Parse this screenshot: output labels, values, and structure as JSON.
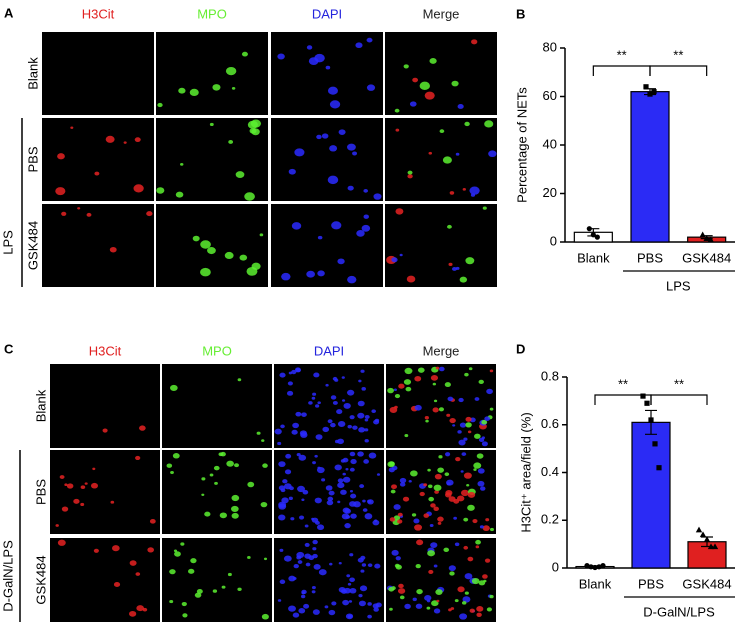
{
  "panels": [
    {
      "letter": "A",
      "columns": [
        "H3Cit",
        "MPO",
        "DAPI",
        "Merge"
      ],
      "rows": [
        "Blank",
        "PBS",
        "GSK484"
      ],
      "group": "LPS"
    },
    {
      "letter": "C",
      "columns": [
        "H3Cit",
        "MPO",
        "DAPI",
        "Merge"
      ],
      "rows": [
        "Blank",
        "PBS",
        "GSK484"
      ],
      "group": "D-GalN/LPS"
    }
  ],
  "chart_letters": [
    "B",
    "D"
  ],
  "chart_data": [
    {
      "type": "bar",
      "ylabel": "Percentage of NETs",
      "categories": [
        "Blank",
        "PBS",
        "GSK484"
      ],
      "group_label": "LPS",
      "values": [
        4,
        62,
        2
      ],
      "errors": [
        1.5,
        1.2,
        0.6
      ],
      "colors": [
        "#ffffff",
        "#2b2bf5",
        "#e02020"
      ],
      "points": [
        [
          5.5,
          3,
          2
        ],
        [
          64,
          61,
          62
        ],
        [
          3,
          1.5,
          1
        ]
      ],
      "significance_labels": [
        "**",
        "**"
      ],
      "ylim": [
        0,
        80
      ],
      "yticks": [
        0,
        20,
        40,
        60,
        80
      ]
    },
    {
      "type": "bar",
      "ylabel": "H3Cit⁺ area/field (%)",
      "categories": [
        "Blank",
        "PBS",
        "GSK484"
      ],
      "group_label": "D-GalN/LPS",
      "values": [
        0.006,
        0.61,
        0.11
      ],
      "errors": [
        0.003,
        0.05,
        0.02
      ],
      "colors": [
        "#ffffff",
        "#2b2bf5",
        "#e02020"
      ],
      "points": [
        [
          0.01,
          0.005,
          0.002,
          0.005,
          0.01
        ],
        [
          0.72,
          0.69,
          0.62,
          0.52,
          0.42
        ],
        [
          0.16,
          0.14,
          0.12,
          0.09,
          0.09
        ]
      ],
      "significance_labels": [
        "**",
        "**"
      ],
      "ylim": [
        0,
        0.8
      ],
      "yticks": [
        0,
        0.2,
        0.4,
        0.6,
        0.8
      ]
    }
  ]
}
